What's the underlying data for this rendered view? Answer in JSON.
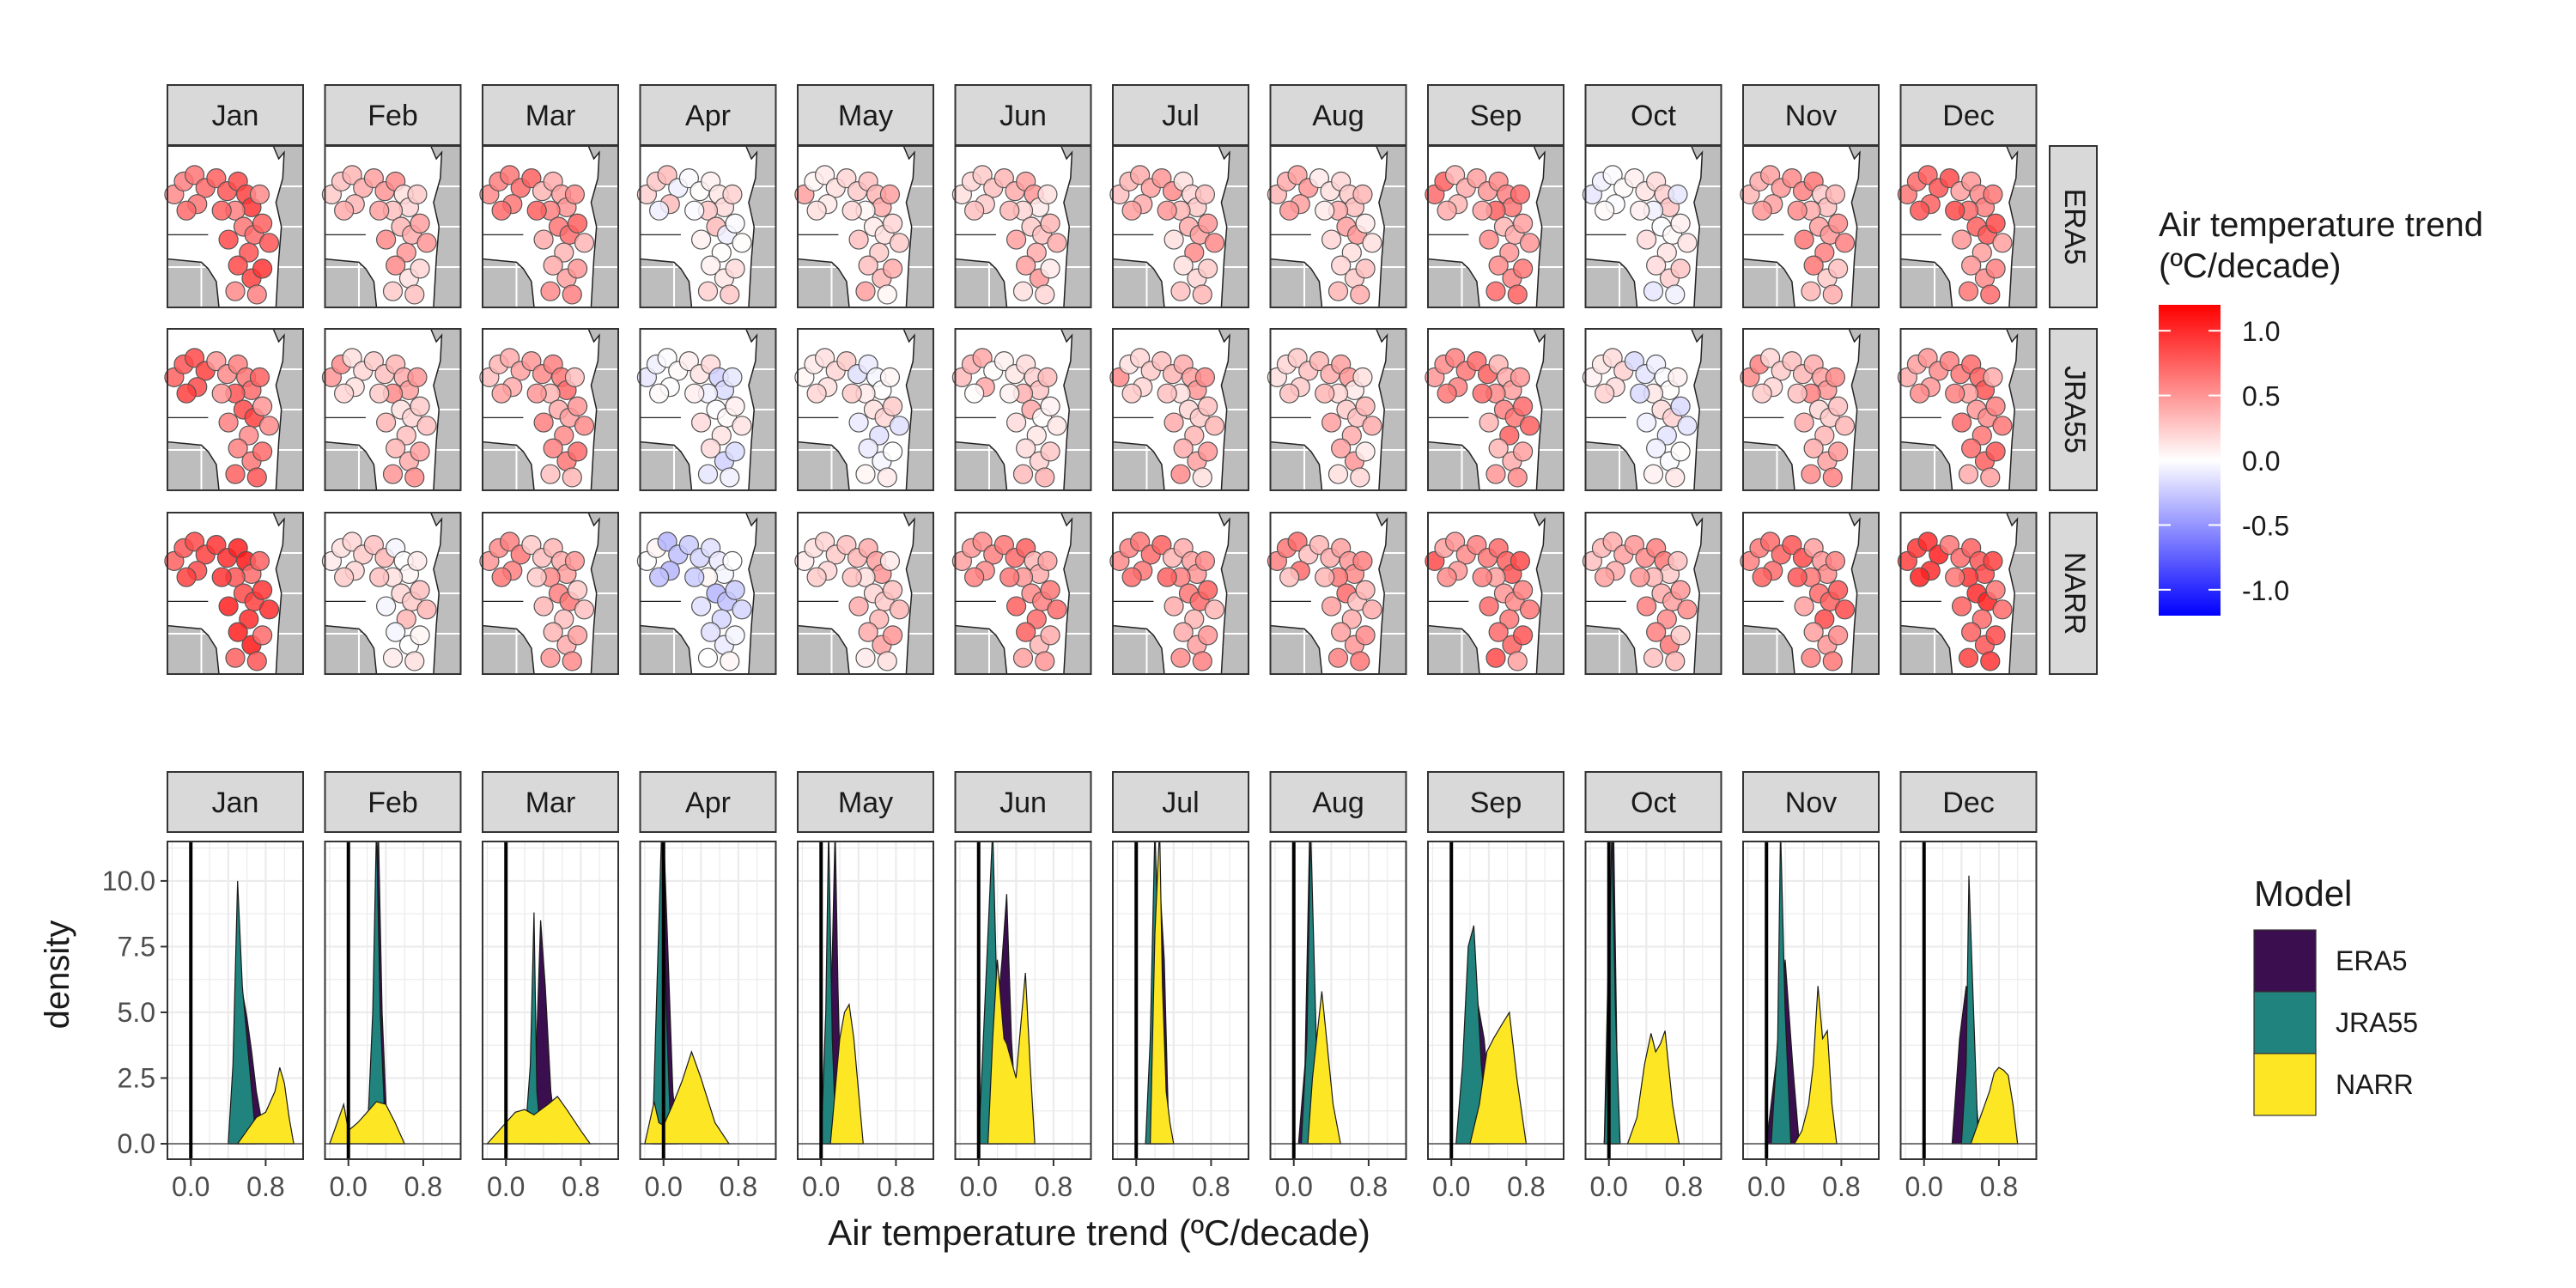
{
  "months": [
    "Jan",
    "Feb",
    "Mar",
    "Apr",
    "May",
    "Jun",
    "Jul",
    "Aug",
    "Sep",
    "Oct",
    "Nov",
    "Dec"
  ],
  "map_panel": {
    "row_labels": [
      "ERA5",
      "JRA55",
      "NARR"
    ],
    "legend_title": [
      "Air temperature trend",
      "(ºC/decade)"
    ],
    "legend_ticks": [
      "1.0",
      "0.5",
      "0.0",
      "-0.5",
      "-1.0"
    ],
    "legend_values": [
      1.0,
      0.5,
      0.0,
      -0.5,
      -1.0
    ],
    "color_low": "#0000FF",
    "color_mid": "#FFFFFF",
    "color_high": "#FF0000",
    "mean_trend": [
      [
        0.75,
        0.35,
        0.55,
        0.12,
        0.25,
        0.3,
        0.35,
        0.3,
        0.55,
        0.08,
        0.45,
        0.65
      ],
      [
        0.7,
        0.35,
        0.5,
        -0.02,
        0.05,
        0.22,
        0.35,
        0.3,
        0.55,
        0.02,
        0.4,
        0.6
      ],
      [
        0.9,
        0.15,
        0.45,
        -0.15,
        0.3,
        0.55,
        0.55,
        0.5,
        0.65,
        0.45,
        0.65,
        0.85
      ]
    ]
  },
  "chart_data": {
    "type": "area",
    "subtype": "density",
    "xlabel": "Air temperature trend (ºC/decade)",
    "ylabel": "density",
    "ylim": [
      0,
      10
    ],
    "y_ticks": [
      "0.0",
      "2.5",
      "5.0",
      "7.5",
      "10.0"
    ],
    "x_ticks": [
      "0.0",
      "0.8"
    ],
    "x_tick_values": [
      0.0,
      0.8
    ],
    "vline_x": 0,
    "legend": {
      "title": "Model",
      "position": "right"
    },
    "series": [
      {
        "name": "ERA5",
        "color": "#3B0F4F",
        "panels": [
          {
            "x": [
              0.42,
              0.5,
              0.55,
              0.6,
              0.65,
              0.7,
              0.75,
              0.8
            ],
            "y": [
              0,
              2,
              5.8,
              4.8,
              3.5,
              2,
              1,
              0
            ]
          },
          {
            "x": [
              0.2,
              0.28,
              0.32,
              0.36,
              0.42
            ],
            "y": [
              0,
              6,
              12,
              5,
              0
            ]
          },
          {
            "x": [
              0.25,
              0.32,
              0.37,
              0.42,
              0.48,
              0.55
            ],
            "y": [
              0,
              3,
              8.5,
              6,
              2,
              0
            ]
          },
          {
            "x": [
              -0.1,
              -0.03,
              0.0,
              0.05,
              0.1,
              0.15
            ],
            "y": [
              0,
              6,
              12,
              7,
              2,
              0
            ]
          },
          {
            "x": [
              0.05,
              0.1,
              0.15,
              0.18,
              0.22
            ],
            "y": [
              0,
              4,
              12,
              6,
              0
            ]
          },
          {
            "x": [
              0.05,
              0.15,
              0.25,
              0.3,
              0.35,
              0.42
            ],
            "y": [
              0,
              3,
              7,
              9.5,
              4,
              0
            ]
          },
          {
            "x": [
              0.1,
              0.18,
              0.25,
              0.3,
              0.35
            ],
            "y": [
              0,
              3,
              10,
              7,
              0
            ]
          },
          {
            "x": [
              0.05,
              0.12,
              0.17,
              0.22,
              0.28
            ],
            "y": [
              0,
              3,
              12,
              5,
              0
            ]
          },
          {
            "x": [
              0.05,
              0.15,
              0.25,
              0.35,
              0.45
            ],
            "y": [
              0,
              2,
              6,
              4,
              0
            ]
          },
          {
            "x": [
              -0.05,
              0.0,
              0.05,
              0.1
            ],
            "y": [
              0,
              8,
              12,
              0
            ]
          },
          {
            "x": [
              0.0,
              0.1,
              0.2,
              0.28,
              0.35
            ],
            "y": [
              0,
              3,
              7,
              3,
              0
            ]
          },
          {
            "x": [
              0.3,
              0.38,
              0.45,
              0.52,
              0.6
            ],
            "y": [
              0,
              4,
              6,
              3,
              0
            ]
          }
        ]
      },
      {
        "name": "JRA55",
        "color": "#21837E",
        "panels": [
          {
            "x": [
              0.4,
              0.45,
              0.5,
              0.55,
              0.6,
              0.65,
              0.7
            ],
            "y": [
              0,
              3,
              10,
              6,
              4,
              2,
              0
            ]
          },
          {
            "x": [
              0.2,
              0.26,
              0.3,
              0.34,
              0.4
            ],
            "y": [
              0,
              5,
              12,
              5,
              0
            ]
          },
          {
            "x": [
              0.2,
              0.26,
              0.3,
              0.33,
              0.38
            ],
            "y": [
              0,
              3,
              8.8,
              2,
              0
            ]
          },
          {
            "x": [
              -0.12,
              -0.07,
              -0.02,
              0.03,
              0.08
            ],
            "y": [
              0,
              6,
              12,
              5,
              0
            ]
          },
          {
            "x": [
              0.0,
              0.05,
              0.08,
              0.12,
              0.16
            ],
            "y": [
              0,
              5,
              12,
              4,
              0
            ]
          },
          {
            "x": [
              0.0,
              0.05,
              0.1,
              0.15,
              0.2,
              0.25
            ],
            "y": [
              0,
              4,
              8,
              12,
              5,
              0
            ]
          },
          {
            "x": [
              0.1,
              0.15,
              0.2,
              0.26,
              0.3
            ],
            "y": [
              0,
              4,
              12,
              5,
              0
            ]
          },
          {
            "x": [
              0.08,
              0.14,
              0.18,
              0.24,
              0.3
            ],
            "y": [
              0,
              4,
              12,
              4,
              0
            ]
          },
          {
            "x": [
              0.05,
              0.12,
              0.18,
              0.24,
              0.32,
              0.4
            ],
            "y": [
              0,
              3,
              7.5,
              8.3,
              3,
              0
            ]
          },
          {
            "x": [
              -0.05,
              0.0,
              0.03,
              0.07,
              0.12
            ],
            "y": [
              0,
              5,
              12,
              5,
              0
            ]
          },
          {
            "x": [
              0.05,
              0.12,
              0.15,
              0.2,
              0.26
            ],
            "y": [
              0,
              4,
              12,
              5,
              0
            ]
          },
          {
            "x": [
              0.4,
              0.45,
              0.48,
              0.52,
              0.58
            ],
            "y": [
              0,
              3,
              10.2,
              6,
              0
            ]
          }
        ]
      },
      {
        "name": "NARR",
        "color": "#FDE725",
        "panels": [
          {
            "x": [
              0.5,
              0.6,
              0.7,
              0.8,
              0.9,
              0.95,
              1.0,
              1.05,
              1.1
            ],
            "y": [
              0,
              0.5,
              1,
              1.2,
              2,
              2.9,
              2.3,
              1,
              0
            ]
          },
          {
            "x": [
              -0.2,
              -0.05,
              0.0,
              0.1,
              0.2,
              0.3,
              0.4,
              0.5,
              0.6
            ],
            "y": [
              0,
              1.5,
              0.5,
              0.8,
              1.2,
              1.6,
              1.5,
              0.8,
              0
            ]
          },
          {
            "x": [
              -0.2,
              0.0,
              0.1,
              0.2,
              0.3,
              0.45,
              0.55,
              0.65,
              0.8,
              0.9
            ],
            "y": [
              0,
              0.8,
              1.2,
              1.3,
              1.1,
              1.5,
              1.8,
              1.3,
              0.5,
              0
            ]
          },
          {
            "x": [
              -0.2,
              -0.1,
              -0.05,
              0.0,
              0.1,
              0.2,
              0.3,
              0.4,
              0.55,
              0.7
            ],
            "y": [
              0,
              1.6,
              0.8,
              0.7,
              1.5,
              2.4,
              3.5,
              2.5,
              0.8,
              0
            ]
          },
          {
            "x": [
              0.1,
              0.15,
              0.2,
              0.25,
              0.3,
              0.35,
              0.4,
              0.45
            ],
            "y": [
              0,
              2,
              4,
              5,
              5.3,
              4,
              2,
              0
            ]
          },
          {
            "x": [
              0.1,
              0.15,
              0.2,
              0.27,
              0.3,
              0.4,
              0.5,
              0.55,
              0.6
            ],
            "y": [
              0,
              4,
              7,
              4,
              3.8,
              2.5,
              6.5,
              3,
              0
            ]
          },
          {
            "x": [
              0.15,
              0.2,
              0.25,
              0.28,
              0.32,
              0.36,
              0.4
            ],
            "y": [
              0,
              8,
              12,
              6,
              2,
              0.8,
              0
            ]
          },
          {
            "x": [
              0.15,
              0.2,
              0.26,
              0.3,
              0.35,
              0.42,
              0.5
            ],
            "y": [
              0,
              2.5,
              4.5,
              5.8,
              4,
              1.5,
              0
            ]
          },
          {
            "x": [
              0.2,
              0.3,
              0.38,
              0.45,
              0.55,
              0.62,
              0.7,
              0.8
            ],
            "y": [
              0,
              1.5,
              3.5,
              4,
              4.6,
              5,
              2.5,
              0
            ]
          },
          {
            "x": [
              0.2,
              0.3,
              0.38,
              0.45,
              0.5,
              0.55,
              0.6,
              0.68,
              0.75
            ],
            "y": [
              0,
              1,
              3,
              4.2,
              3.5,
              3.8,
              4.3,
              1.5,
              0
            ]
          },
          {
            "x": [
              0.3,
              0.38,
              0.45,
              0.5,
              0.55,
              0.6,
              0.65,
              0.7,
              0.75
            ],
            "y": [
              0,
              0.5,
              1.5,
              3,
              6,
              4,
              4.3,
              1.5,
              0
            ]
          },
          {
            "x": [
              0.5,
              0.6,
              0.65,
              0.7,
              0.75,
              0.8,
              0.85,
              0.9,
              0.95,
              1.0
            ],
            "y": [
              0,
              1,
              1.5,
              2,
              2.7,
              2.9,
              2.8,
              2.6,
              1.5,
              0
            ]
          }
        ]
      }
    ]
  }
}
